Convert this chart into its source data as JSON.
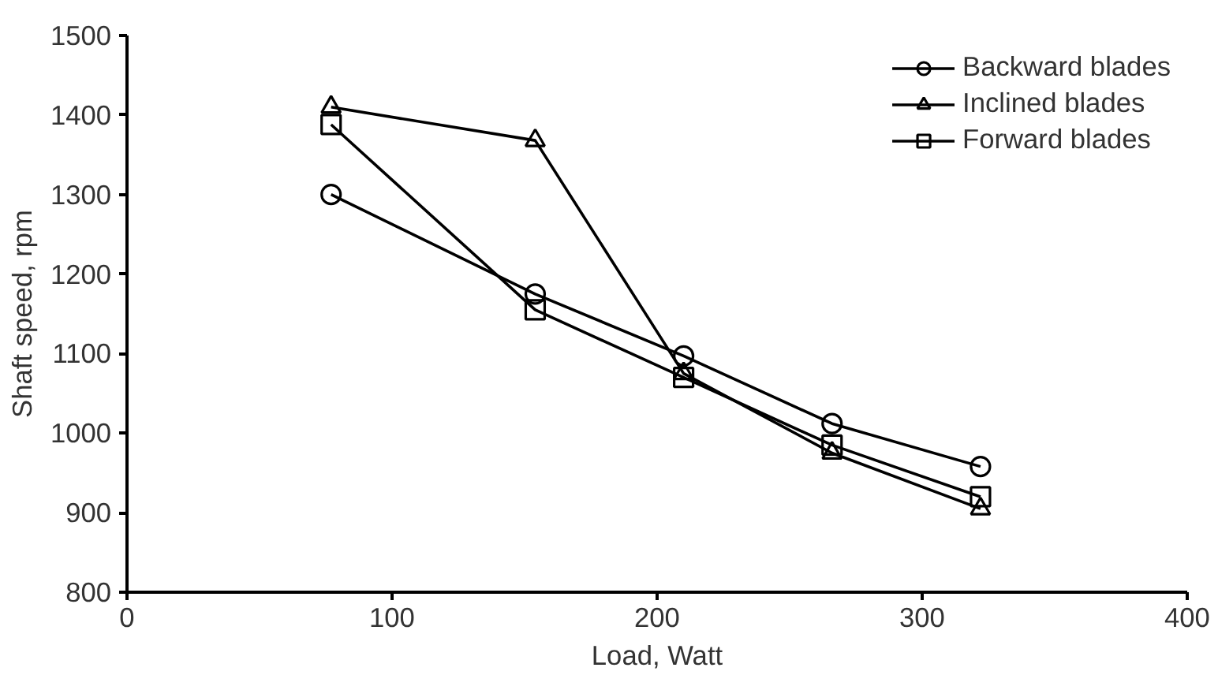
{
  "chart_data": {
    "type": "line",
    "xlabel": "Load, Watt",
    "ylabel": "Shaft speed, rpm",
    "x": [
      77,
      154,
      210,
      266,
      322
    ],
    "series": [
      {
        "name": "Backward blades",
        "color": "#000000",
        "marker": "circle",
        "values": [
          1300,
          1175,
          1097,
          1012,
          958
        ]
      },
      {
        "name": "Inclined blades",
        "color": "#000000",
        "marker": "triangle",
        "values": [
          1410,
          1368,
          1075,
          975,
          905
        ]
      },
      {
        "name": "Forward blades",
        "color": "#000000",
        "marker": "square",
        "values": [
          1388,
          1155,
          1070,
          985,
          920
        ]
      }
    ],
    "xlim": [
      0,
      400
    ],
    "xticks": [
      0,
      100,
      200,
      300,
      400
    ],
    "ylim": [
      800,
      1500
    ],
    "yticks": [
      800,
      900,
      1000,
      1100,
      1200,
      1300,
      1400,
      1500
    ],
    "grid": false,
    "legend": "top right",
    "line_style": "solid"
  }
}
